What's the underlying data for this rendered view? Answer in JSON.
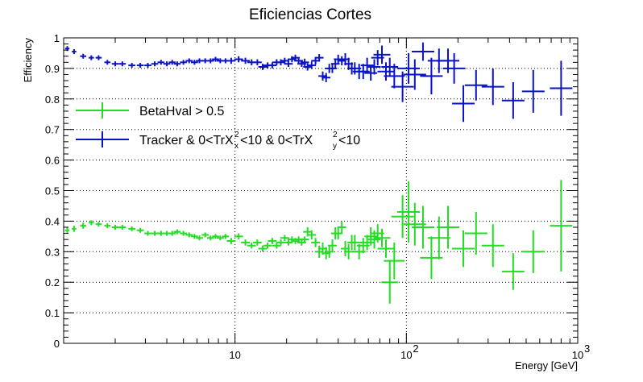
{
  "chart_data": {
    "type": "scatter",
    "title": "Eficiencias Cortes",
    "xlabel": "Energy [GeV]",
    "ylabel": "Efficiency",
    "x_scale": "log",
    "xlim": [
      1,
      1000
    ],
    "ylim": [
      0,
      1
    ],
    "grid": true,
    "legend_position": "top-left",
    "y_ticks": [
      "0",
      "0.1",
      "0.2",
      "0.3",
      "0.4",
      "0.5",
      "0.6",
      "0.7",
      "0.8",
      "0.9",
      "1"
    ],
    "x_ticks": [
      {
        "value": 10,
        "base": "10",
        "exp": ""
      },
      {
        "value": 100,
        "base": "10",
        "exp": "2"
      },
      {
        "value": 1000,
        "base": "10",
        "exp": "3"
      }
    ],
    "series": [
      {
        "name": "BetaHval > 0.5",
        "color": "#22dd22",
        "points": [
          [
            1.05,
            0.37,
            0.005,
            0.01
          ],
          [
            1.15,
            0.375,
            0.005,
            0.01
          ],
          [
            1.3,
            0.385,
            0.007,
            0.01
          ],
          [
            1.45,
            0.395,
            0.006,
            0.008
          ],
          [
            1.6,
            0.39,
            0.007,
            0.008
          ],
          [
            1.8,
            0.385,
            0.007,
            0.008
          ],
          [
            2.0,
            0.38,
            0.008,
            0.008
          ],
          [
            2.2,
            0.38,
            0.008,
            0.008
          ],
          [
            2.5,
            0.375,
            0.008,
            0.008
          ],
          [
            2.8,
            0.37,
            0.008,
            0.008
          ],
          [
            3.1,
            0.36,
            0.008,
            0.008
          ],
          [
            3.4,
            0.36,
            0.008,
            0.008
          ],
          [
            3.7,
            0.36,
            0.008,
            0.008
          ],
          [
            4.0,
            0.36,
            0.008,
            0.008
          ],
          [
            4.3,
            0.36,
            0.008,
            0.008
          ],
          [
            4.6,
            0.365,
            0.008,
            0.008
          ],
          [
            5.0,
            0.36,
            0.008,
            0.008
          ],
          [
            5.4,
            0.355,
            0.008,
            0.008
          ],
          [
            5.8,
            0.35,
            0.008,
            0.008
          ],
          [
            6.2,
            0.345,
            0.008,
            0.008
          ],
          [
            6.7,
            0.355,
            0.008,
            0.008
          ],
          [
            7.2,
            0.345,
            0.008,
            0.008
          ],
          [
            7.7,
            0.35,
            0.008,
            0.008
          ],
          [
            8.2,
            0.345,
            0.008,
            0.008
          ],
          [
            8.8,
            0.35,
            0.008,
            0.008
          ],
          [
            9.5,
            0.335,
            0.01,
            0.01
          ],
          [
            10.5,
            0.35,
            0.01,
            0.01
          ],
          [
            11.5,
            0.33,
            0.01,
            0.01
          ],
          [
            12.5,
            0.32,
            0.01,
            0.01
          ],
          [
            13.5,
            0.33,
            0.01,
            0.01
          ],
          [
            14.5,
            0.31,
            0.01,
            0.01
          ],
          [
            15.5,
            0.32,
            0.01,
            0.01
          ],
          [
            16.5,
            0.335,
            0.01,
            0.01
          ],
          [
            17.5,
            0.32,
            0.01,
            0.01
          ],
          [
            18.5,
            0.33,
            0.01,
            0.01
          ],
          [
            19.5,
            0.345,
            0.01,
            0.01
          ],
          [
            20.5,
            0.33,
            0.01,
            0.01
          ],
          [
            21.5,
            0.34,
            0.01,
            0.01
          ],
          [
            22.5,
            0.335,
            0.01,
            0.01
          ],
          [
            23.5,
            0.34,
            0.01,
            0.01
          ],
          [
            24.5,
            0.33,
            0.01,
            0.01
          ],
          [
            25.5,
            0.34,
            0.01,
            0.01
          ],
          [
            26.5,
            0.365,
            0.01,
            0.015
          ],
          [
            28,
            0.355,
            0.01,
            0.015
          ],
          [
            29.5,
            0.33,
            0.01,
            0.015
          ],
          [
            31,
            0.3,
            0.01,
            0.02
          ],
          [
            32.5,
            0.31,
            0.01,
            0.02
          ],
          [
            34,
            0.295,
            0.01,
            0.02
          ],
          [
            35.5,
            0.3,
            0.01,
            0.02
          ],
          [
            37,
            0.32,
            0.01,
            0.02
          ],
          [
            38.5,
            0.36,
            0.01,
            0.02
          ],
          [
            40,
            0.36,
            0.01,
            0.02
          ],
          [
            42,
            0.38,
            0.01,
            0.02
          ],
          [
            44,
            0.31,
            0.01,
            0.025
          ],
          [
            46,
            0.3,
            0.01,
            0.025
          ],
          [
            48,
            0.33,
            0.01,
            0.025
          ],
          [
            50,
            0.33,
            0.015,
            0.025
          ],
          [
            53,
            0.3,
            0.015,
            0.025
          ],
          [
            56,
            0.32,
            0.015,
            0.025
          ],
          [
            59,
            0.33,
            0.015,
            0.025
          ],
          [
            62,
            0.35,
            0.015,
            0.03
          ],
          [
            65,
            0.34,
            0.015,
            0.03
          ],
          [
            68,
            0.36,
            0.015,
            0.03
          ],
          [
            72,
            0.345,
            0.02,
            0.03
          ],
          [
            76,
            0.31,
            0.02,
            0.03
          ],
          [
            80,
            0.2,
            0.02,
            0.07
          ],
          [
            85,
            0.27,
            0.025,
            0.06
          ],
          [
            95,
            0.415,
            0.03,
            0.07
          ],
          [
            103,
            0.43,
            0.03,
            0.1
          ],
          [
            112,
            0.39,
            0.03,
            0.07
          ],
          [
            125,
            0.38,
            0.035,
            0.07
          ],
          [
            140,
            0.28,
            0.04,
            0.07
          ],
          [
            155,
            0.345,
            0.04,
            0.07
          ],
          [
            175,
            0.38,
            0.05,
            0.07
          ],
          [
            215,
            0.31,
            0.05,
            0.06
          ],
          [
            255,
            0.36,
            0.06,
            0.07
          ],
          [
            320,
            0.32,
            0.07,
            0.07
          ],
          [
            420,
            0.235,
            0.09,
            0.06
          ],
          [
            550,
            0.3,
            0.12,
            0.07
          ],
          [
            800,
            0.385,
            0.18,
            0.15
          ]
        ]
      },
      {
        "name": "Tracker & 0<TrX²ₓ<10 & 0<TrX²ᵧ<10",
        "color": "#0a12c8",
        "points": [
          [
            1.05,
            0.965,
            0.005,
            0.008
          ],
          [
            1.15,
            0.955,
            0.005,
            0.008
          ],
          [
            1.3,
            0.94,
            0.007,
            0.008
          ],
          [
            1.45,
            0.935,
            0.006,
            0.008
          ],
          [
            1.6,
            0.935,
            0.007,
            0.008
          ],
          [
            1.8,
            0.92,
            0.007,
            0.008
          ],
          [
            2.0,
            0.915,
            0.008,
            0.008
          ],
          [
            2.2,
            0.915,
            0.008,
            0.008
          ],
          [
            2.5,
            0.91,
            0.008,
            0.008
          ],
          [
            2.8,
            0.91,
            0.008,
            0.008
          ],
          [
            3.1,
            0.91,
            0.008,
            0.008
          ],
          [
            3.4,
            0.915,
            0.008,
            0.008
          ],
          [
            3.7,
            0.92,
            0.008,
            0.008
          ],
          [
            4.0,
            0.915,
            0.008,
            0.008
          ],
          [
            4.3,
            0.92,
            0.008,
            0.008
          ],
          [
            4.6,
            0.915,
            0.008,
            0.008
          ],
          [
            5.0,
            0.92,
            0.008,
            0.008
          ],
          [
            5.4,
            0.925,
            0.008,
            0.008
          ],
          [
            5.8,
            0.92,
            0.008,
            0.008
          ],
          [
            6.2,
            0.925,
            0.008,
            0.008
          ],
          [
            6.7,
            0.925,
            0.008,
            0.008
          ],
          [
            7.2,
            0.925,
            0.008,
            0.008
          ],
          [
            7.7,
            0.93,
            0.008,
            0.008
          ],
          [
            8.2,
            0.925,
            0.008,
            0.008
          ],
          [
            8.8,
            0.925,
            0.008,
            0.008
          ],
          [
            9.5,
            0.925,
            0.01,
            0.01
          ],
          [
            10.5,
            0.93,
            0.01,
            0.01
          ],
          [
            11.5,
            0.925,
            0.01,
            0.01
          ],
          [
            12.5,
            0.92,
            0.01,
            0.01
          ],
          [
            13.5,
            0.92,
            0.01,
            0.01
          ],
          [
            14.5,
            0.905,
            0.01,
            0.01
          ],
          [
            15.5,
            0.91,
            0.01,
            0.01
          ],
          [
            16.5,
            0.91,
            0.01,
            0.01
          ],
          [
            17.5,
            0.92,
            0.01,
            0.01
          ],
          [
            18.5,
            0.92,
            0.01,
            0.01
          ],
          [
            19.5,
            0.925,
            0.01,
            0.01
          ],
          [
            20.5,
            0.915,
            0.01,
            0.01
          ],
          [
            21.5,
            0.93,
            0.01,
            0.01
          ],
          [
            22.5,
            0.935,
            0.01,
            0.01
          ],
          [
            23.5,
            0.925,
            0.01,
            0.01
          ],
          [
            24.5,
            0.915,
            0.01,
            0.01
          ],
          [
            25.5,
            0.92,
            0.01,
            0.012
          ],
          [
            26.5,
            0.905,
            0.01,
            0.012
          ],
          [
            28,
            0.91,
            0.01,
            0.012
          ],
          [
            29.5,
            0.925,
            0.01,
            0.012
          ],
          [
            31,
            0.935,
            0.01,
            0.012
          ],
          [
            32.5,
            0.875,
            0.01,
            0.015
          ],
          [
            34,
            0.87,
            0.01,
            0.015
          ],
          [
            35.5,
            0.9,
            0.01,
            0.015
          ],
          [
            37,
            0.9,
            0.01,
            0.015
          ],
          [
            38.5,
            0.915,
            0.01,
            0.015
          ],
          [
            40,
            0.93,
            0.01,
            0.015
          ],
          [
            42,
            0.925,
            0.01,
            0.015
          ],
          [
            44,
            0.93,
            0.01,
            0.02
          ],
          [
            46,
            0.915,
            0.01,
            0.02
          ],
          [
            48,
            0.9,
            0.01,
            0.02
          ],
          [
            50,
            0.9,
            0.015,
            0.02
          ],
          [
            53,
            0.89,
            0.015,
            0.025
          ],
          [
            56,
            0.89,
            0.015,
            0.025
          ],
          [
            59,
            0.91,
            0.015,
            0.025
          ],
          [
            62,
            0.885,
            0.015,
            0.025
          ],
          [
            65,
            0.905,
            0.015,
            0.025
          ],
          [
            68,
            0.935,
            0.015,
            0.025
          ],
          [
            72,
            0.945,
            0.02,
            0.03
          ],
          [
            76,
            0.89,
            0.02,
            0.03
          ],
          [
            80,
            0.905,
            0.02,
            0.03
          ],
          [
            85,
            0.875,
            0.025,
            0.04
          ],
          [
            95,
            0.84,
            0.03,
            0.05
          ],
          [
            103,
            0.9,
            0.03,
            0.05
          ],
          [
            112,
            0.88,
            0.03,
            0.05
          ],
          [
            125,
            0.955,
            0.035,
            0.03
          ],
          [
            140,
            0.875,
            0.04,
            0.06
          ],
          [
            155,
            0.925,
            0.04,
            0.04
          ],
          [
            175,
            0.925,
            0.05,
            0.04
          ],
          [
            190,
            0.9,
            0.05,
            0.05
          ],
          [
            215,
            0.785,
            0.05,
            0.06
          ],
          [
            255,
            0.845,
            0.06,
            0.05
          ],
          [
            320,
            0.84,
            0.07,
            0.06
          ],
          [
            420,
            0.795,
            0.09,
            0.06
          ],
          [
            550,
            0.825,
            0.12,
            0.07
          ],
          [
            800,
            0.835,
            0.18,
            0.09
          ]
        ]
      }
    ]
  },
  "legend": {
    "entries": [
      {
        "label": "BetaHval > 0.5",
        "color": "#22dd22"
      },
      {
        "label_parts": {
          "t1": "Tracker & 0<TrX",
          "sup1": "2",
          "sub1": "x",
          "t2": "<10 & 0<TrX",
          "sup2": "2",
          "sub2": "y",
          "t3": "<10"
        },
        "color": "#0a12c8"
      }
    ]
  }
}
